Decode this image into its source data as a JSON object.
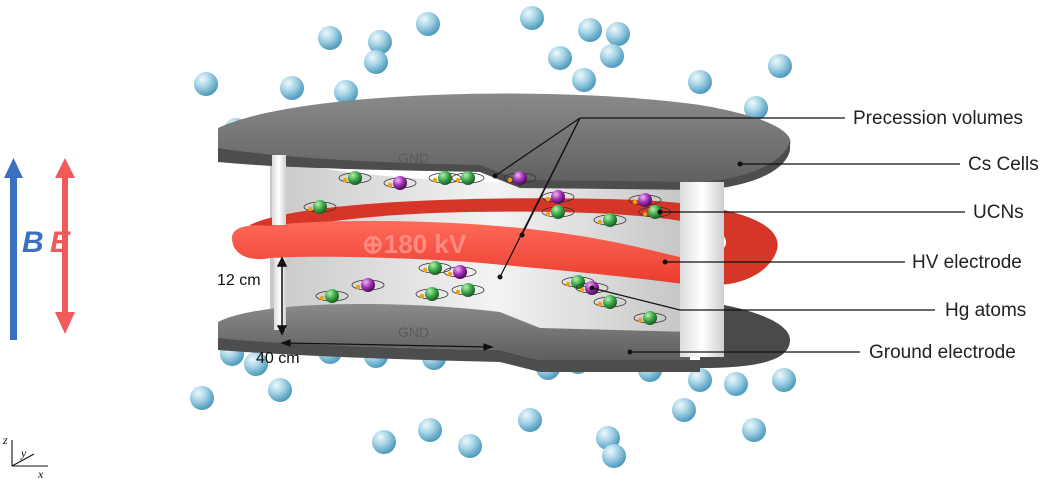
{
  "labels": {
    "precession_volumes": "Precession volumes",
    "cs_cells": "Cs Cells",
    "ucns": "UCNs",
    "hv_electrode": "HV electrode",
    "hg_atoms": "Hg atoms",
    "ground_electrode": "Ground electrode"
  },
  "electrodes": {
    "top_gnd": "GND",
    "bottom_gnd": "GND",
    "hv": "⊕180 kV"
  },
  "dimensions": {
    "height": "12 cm",
    "diameter": "40 cm"
  },
  "fields": {
    "b": "B",
    "e": "E"
  },
  "axes": {
    "z": "z",
    "y": "y",
    "x": "x"
  },
  "colors": {
    "b_field": "#3a6fc2",
    "e_field": "#f05a5a",
    "hv_electrode": "#f4483a",
    "ground_electrode": "#6b6b6b",
    "cs_cell": "#8fc8e0",
    "ucn": "#3aa84a",
    "hg_atom": "#9b2fae"
  }
}
